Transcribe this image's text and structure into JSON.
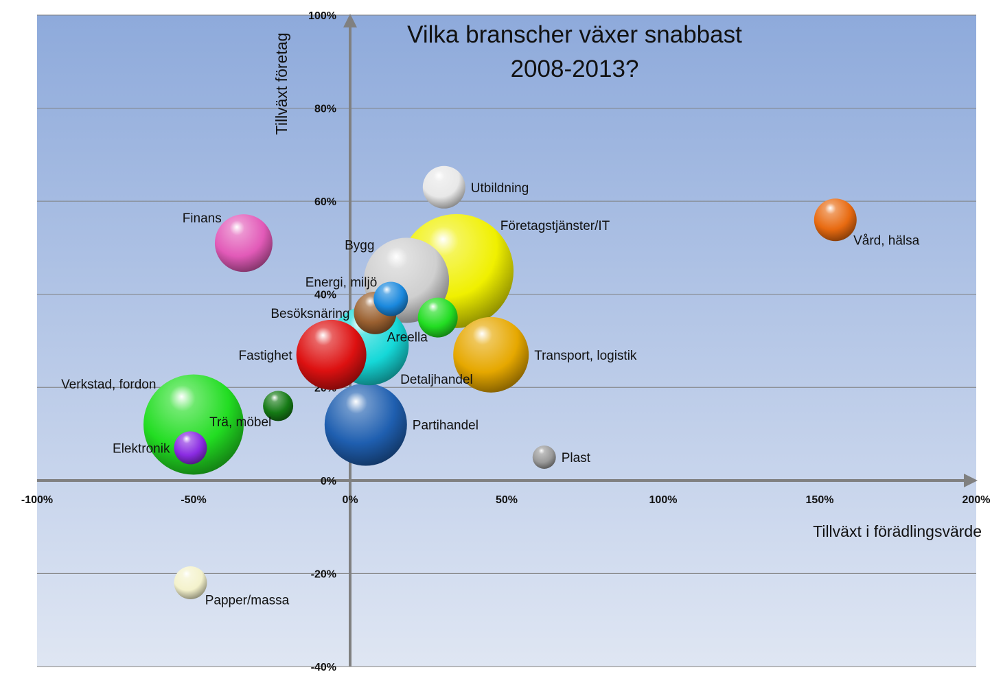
{
  "chart_data": {
    "type": "scatter",
    "subtype": "bubble",
    "title_lines": [
      "Vilka branscher växer snabbast",
      "2008-2013?"
    ],
    "xlabel": "Tillväxt i förädlingsvärde",
    "ylabel": "Tillväxt företag",
    "xlim": [
      -100,
      200
    ],
    "ylim": [
      -40,
      100
    ],
    "x_ticks": [
      {
        "value": -100,
        "label": "-100%"
      },
      {
        "value": -50,
        "label": "-50%"
      },
      {
        "value": 0,
        "label": "0%"
      },
      {
        "value": 50,
        "label": "50%"
      },
      {
        "value": 100,
        "label": "100%"
      },
      {
        "value": 150,
        "label": "150%"
      },
      {
        "value": 200,
        "label": "200%"
      }
    ],
    "y_ticks": [
      {
        "value": -40,
        "label": "-40%"
      },
      {
        "value": -20,
        "label": "-20%"
      },
      {
        "value": 0,
        "label": "0%"
      },
      {
        "value": 20,
        "label": "20%"
      },
      {
        "value": 40,
        "label": "40%"
      },
      {
        "value": 60,
        "label": "60%"
      },
      {
        "value": 80,
        "label": "80%"
      },
      {
        "value": 100,
        "label": "100%"
      }
    ],
    "grid": true,
    "plot_background": [
      "#8eaadb",
      "#dfe6f3"
    ],
    "bubbles": [
      {
        "label": "Verkstad, fordon",
        "x": -50,
        "y": 12,
        "size": 73,
        "color": "#22dd22",
        "label_pos": "upper-left"
      },
      {
        "label": "Företagstjänster/IT",
        "x": 34,
        "y": 45,
        "size": 83,
        "color": "#f0f000",
        "label_pos": "upper-right"
      },
      {
        "label": "Partihandel",
        "x": 5,
        "y": 12,
        "size": 60,
        "color": "#1f5fb0",
        "label_pos": "right"
      },
      {
        "label": "Bygg",
        "x": 18,
        "y": 43,
        "size": 62,
        "color": "#cfcfcf",
        "label_pos": "upper-left"
      },
      {
        "label": "Detaljhandel",
        "x": 6,
        "y": 29,
        "size": 58,
        "color": "#15d8d8",
        "label_pos": "lower-right"
      },
      {
        "label": "Transport, logistik",
        "x": 45,
        "y": 27,
        "size": 55,
        "color": "#e6a800",
        "label_pos": "right"
      },
      {
        "label": "Fastighet",
        "x": -6,
        "y": 27,
        "size": 51,
        "color": "#dd1111",
        "label_pos": "left"
      },
      {
        "label": "Finans",
        "x": -34,
        "y": 51,
        "size": 42,
        "color": "#e25ab8",
        "label_pos": "upper-left"
      },
      {
        "label": "Utbildning",
        "x": 30,
        "y": 63,
        "size": 31,
        "color": "#e8e8e8",
        "label_pos": "right"
      },
      {
        "label": "Vård, hälsa",
        "x": 155,
        "y": 56,
        "size": 31,
        "color": "#e86a10",
        "label_pos": "lower-right"
      },
      {
        "label": "Besöksnäring",
        "x": 8,
        "y": 36,
        "size": 31,
        "color": "#9a6030",
        "label_pos": "left"
      },
      {
        "label": "Areella",
        "x": 28,
        "y": 35,
        "size": 29,
        "color": "#22dd22",
        "label_pos": "lower-left"
      },
      {
        "label": "Energi, miljö",
        "x": 13,
        "y": 39,
        "size": 25,
        "color": "#1a88dd",
        "label_pos": "upper-left"
      },
      {
        "label": "Trä, möbel",
        "x": -23,
        "y": 16,
        "size": 22,
        "color": "#157a15",
        "label_pos": "lower-left"
      },
      {
        "label": "Papper/massa",
        "x": -51,
        "y": -22,
        "size": 24,
        "color": "#f4f2cc",
        "label_pos": "lower-right"
      },
      {
        "label": "Elektronik",
        "x": -51,
        "y": 7,
        "size": 24,
        "color": "#8a2be2",
        "label_pos": "left"
      },
      {
        "label": "Plast",
        "x": 62,
        "y": 5,
        "size": 17,
        "color": "#9a9a9a",
        "label_pos": "right"
      }
    ]
  }
}
